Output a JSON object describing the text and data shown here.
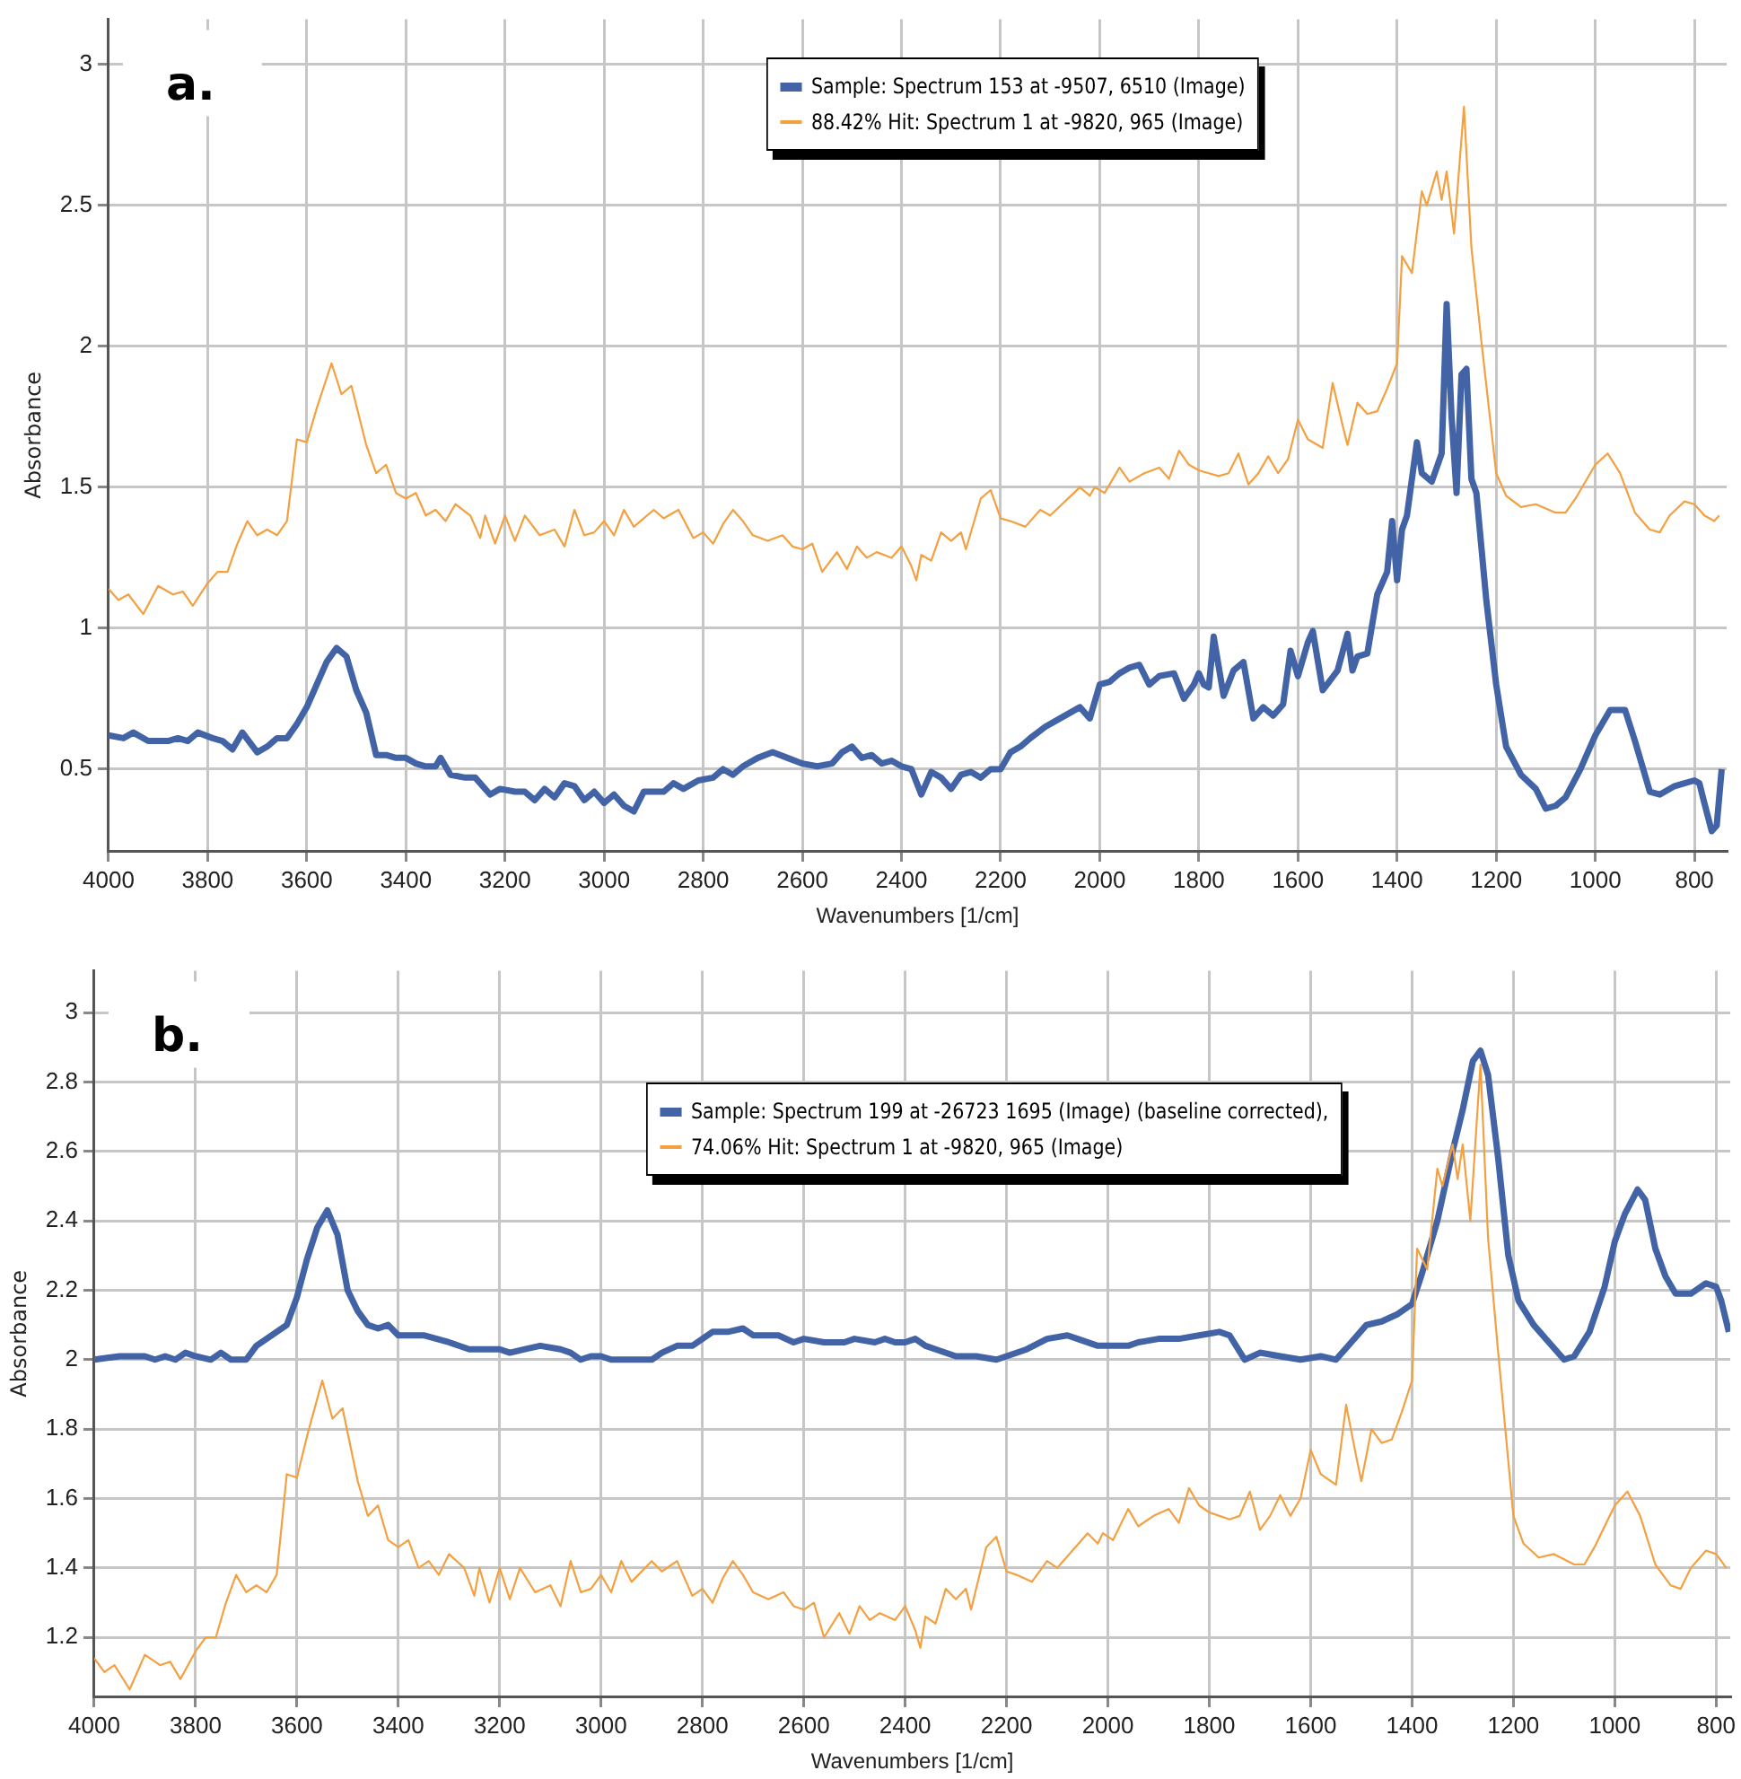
{
  "chart_data": [
    {
      "type": "line",
      "xlabel": "Wavenumbers [1/cm]",
      "ylabel": "Absorbance",
      "annotations": [
        "a."
      ],
      "xlim": [
        4000,
        735
      ],
      "ylim": [
        0.21,
        3.16
      ],
      "xticks": [
        4000,
        3800,
        3600,
        3400,
        3200,
        3000,
        2800,
        2600,
        2400,
        2200,
        2000,
        1800,
        1600,
        1400,
        1200,
        1000,
        800
      ],
      "yticks": [
        0.5,
        1,
        1.5,
        2,
        2.5,
        3
      ],
      "grid": true,
      "legend": "top",
      "marker": "none",
      "series": [
        {
          "name": "Sample: Spectrum 153 at -9507, 6510 (Image)",
          "color": "#4263a6",
          "x": [
            4000,
            3970,
            3950,
            3920,
            3880,
            3860,
            3840,
            3820,
            3790,
            3770,
            3750,
            3730,
            3700,
            3680,
            3660,
            3640,
            3620,
            3600,
            3580,
            3560,
            3540,
            3520,
            3500,
            3480,
            3460,
            3440,
            3420,
            3400,
            3380,
            3360,
            3340,
            3330,
            3310,
            3280,
            3260,
            3230,
            3210,
            3180,
            3160,
            3140,
            3120,
            3100,
            3080,
            3060,
            3040,
            3020,
            3000,
            2980,
            2960,
            2940,
            2920,
            2880,
            2860,
            2840,
            2810,
            2780,
            2760,
            2740,
            2720,
            2690,
            2660,
            2630,
            2600,
            2570,
            2540,
            2520,
            2500,
            2480,
            2460,
            2440,
            2420,
            2400,
            2380,
            2360,
            2340,
            2320,
            2300,
            2280,
            2260,
            2240,
            2220,
            2200,
            2180,
            2160,
            2140,
            2110,
            2080,
            2060,
            2040,
            2020,
            2000,
            1980,
            1960,
            1940,
            1920,
            1900,
            1880,
            1850,
            1830,
            1810,
            1800,
            1790,
            1780,
            1770,
            1750,
            1730,
            1710,
            1690,
            1670,
            1650,
            1630,
            1615,
            1600,
            1580,
            1570,
            1550,
            1520,
            1500,
            1490,
            1480,
            1460,
            1440,
            1420,
            1410,
            1400,
            1390,
            1380,
            1360,
            1350,
            1330,
            1310,
            1300,
            1290,
            1280,
            1270,
            1260,
            1250,
            1240,
            1220,
            1200,
            1180,
            1150,
            1120,
            1100,
            1080,
            1060,
            1030,
            1000,
            970,
            940,
            920,
            890,
            870,
            840,
            820,
            800,
            790,
            780,
            765,
            755,
            745
          ],
          "values": [
            0.62,
            0.61,
            0.63,
            0.6,
            0.6,
            0.61,
            0.6,
            0.63,
            0.61,
            0.6,
            0.57,
            0.63,
            0.56,
            0.58,
            0.61,
            0.61,
            0.66,
            0.72,
            0.8,
            0.88,
            0.93,
            0.9,
            0.78,
            0.7,
            0.55,
            0.55,
            0.54,
            0.54,
            0.52,
            0.51,
            0.51,
            0.54,
            0.48,
            0.47,
            0.47,
            0.41,
            0.43,
            0.42,
            0.42,
            0.39,
            0.43,
            0.4,
            0.45,
            0.44,
            0.39,
            0.42,
            0.38,
            0.41,
            0.37,
            0.35,
            0.42,
            0.42,
            0.45,
            0.43,
            0.46,
            0.47,
            0.5,
            0.48,
            0.51,
            0.54,
            0.56,
            0.54,
            0.52,
            0.51,
            0.52,
            0.56,
            0.58,
            0.54,
            0.55,
            0.52,
            0.53,
            0.51,
            0.5,
            0.41,
            0.49,
            0.47,
            0.43,
            0.48,
            0.49,
            0.47,
            0.5,
            0.5,
            0.56,
            0.58,
            0.61,
            0.65,
            0.68,
            0.7,
            0.72,
            0.68,
            0.8,
            0.81,
            0.84,
            0.86,
            0.87,
            0.8,
            0.83,
            0.84,
            0.75,
            0.8,
            0.84,
            0.8,
            0.79,
            0.97,
            0.76,
            0.85,
            0.88,
            0.68,
            0.72,
            0.69,
            0.73,
            0.92,
            0.83,
            0.95,
            0.99,
            0.78,
            0.85,
            0.98,
            0.85,
            0.9,
            0.91,
            1.12,
            1.2,
            1.38,
            1.17,
            1.35,
            1.4,
            1.66,
            1.55,
            1.52,
            1.62,
            2.15,
            1.75,
            1.48,
            1.9,
            1.92,
            1.53,
            1.48,
            1.1,
            0.8,
            0.58,
            0.48,
            0.43,
            0.36,
            0.37,
            0.4,
            0.5,
            0.62,
            0.71,
            0.71,
            0.6,
            0.42,
            0.41,
            0.44,
            0.45,
            0.46,
            0.45,
            0.38,
            0.28,
            0.3,
            0.5
          ]
        },
        {
          "name": "88.42% Hit: Spectrum 1 at -9820, 965 (Image)",
          "color": "#f4a040",
          "x": [
            4000,
            3980,
            3960,
            3930,
            3900,
            3870,
            3850,
            3830,
            3800,
            3780,
            3760,
            3740,
            3720,
            3700,
            3680,
            3660,
            3640,
            3620,
            3600,
            3580,
            3550,
            3530,
            3510,
            3480,
            3460,
            3440,
            3420,
            3400,
            3380,
            3360,
            3340,
            3320,
            3300,
            3270,
            3250,
            3240,
            3220,
            3200,
            3180,
            3160,
            3130,
            3100,
            3080,
            3060,
            3040,
            3020,
            3000,
            2980,
            2960,
            2940,
            2900,
            2880,
            2850,
            2820,
            2800,
            2780,
            2760,
            2740,
            2720,
            2700,
            2670,
            2640,
            2620,
            2600,
            2580,
            2560,
            2530,
            2510,
            2490,
            2470,
            2450,
            2420,
            2400,
            2380,
            2370,
            2360,
            2340,
            2320,
            2300,
            2280,
            2270,
            2240,
            2220,
            2200,
            2180,
            2150,
            2120,
            2100,
            2070,
            2040,
            2020,
            2010,
            1990,
            1960,
            1940,
            1910,
            1880,
            1860,
            1840,
            1820,
            1800,
            1780,
            1760,
            1740,
            1720,
            1700,
            1680,
            1660,
            1640,
            1620,
            1600,
            1580,
            1550,
            1530,
            1510,
            1500,
            1480,
            1460,
            1440,
            1420,
            1400,
            1390,
            1370,
            1350,
            1340,
            1320,
            1310,
            1300,
            1285,
            1265,
            1250,
            1230,
            1200,
            1180,
            1150,
            1120,
            1080,
            1060,
            1040,
            1000,
            975,
            950,
            920,
            890,
            870,
            850,
            820,
            800,
            780,
            760,
            750
          ],
          "values": [
            1.14,
            1.1,
            1.12,
            1.05,
            1.15,
            1.12,
            1.13,
            1.08,
            1.16,
            1.2,
            1.2,
            1.3,
            1.38,
            1.33,
            1.35,
            1.33,
            1.38,
            1.67,
            1.66,
            1.78,
            1.94,
            1.83,
            1.86,
            1.65,
            1.55,
            1.58,
            1.48,
            1.46,
            1.48,
            1.4,
            1.42,
            1.38,
            1.44,
            1.4,
            1.32,
            1.4,
            1.3,
            1.4,
            1.31,
            1.4,
            1.33,
            1.35,
            1.29,
            1.42,
            1.33,
            1.34,
            1.38,
            1.33,
            1.42,
            1.36,
            1.42,
            1.39,
            1.42,
            1.32,
            1.34,
            1.3,
            1.37,
            1.42,
            1.38,
            1.33,
            1.31,
            1.33,
            1.29,
            1.28,
            1.3,
            1.2,
            1.27,
            1.21,
            1.29,
            1.25,
            1.27,
            1.25,
            1.29,
            1.22,
            1.17,
            1.26,
            1.24,
            1.34,
            1.31,
            1.34,
            1.28,
            1.46,
            1.49,
            1.39,
            1.38,
            1.36,
            1.42,
            1.4,
            1.45,
            1.5,
            1.47,
            1.5,
            1.48,
            1.57,
            1.52,
            1.55,
            1.57,
            1.53,
            1.63,
            1.58,
            1.56,
            1.55,
            1.54,
            1.55,
            1.62,
            1.51,
            1.55,
            1.61,
            1.55,
            1.6,
            1.74,
            1.67,
            1.64,
            1.87,
            1.72,
            1.65,
            1.8,
            1.76,
            1.77,
            1.85,
            1.94,
            2.32,
            2.26,
            2.55,
            2.5,
            2.62,
            2.52,
            2.62,
            2.4,
            2.85,
            2.35,
            2.02,
            1.55,
            1.47,
            1.43,
            1.44,
            1.41,
            1.41,
            1.46,
            1.58,
            1.62,
            1.55,
            1.41,
            1.35,
            1.34,
            1.4,
            1.45,
            1.44,
            1.4,
            1.38,
            1.4
          ]
        }
      ]
    },
    {
      "type": "line",
      "xlabel": "Wavenumbers [1/cm]",
      "ylabel": "Absorbance",
      "annotations": [
        "b."
      ],
      "xlim": [
        4000,
        772
      ],
      "ylim": [
        1.03,
        3.12
      ],
      "xticks": [
        4000,
        3800,
        3600,
        3400,
        3200,
        3000,
        2800,
        2600,
        2400,
        2200,
        2000,
        1800,
        1600,
        1400,
        1200,
        1000,
        800
      ],
      "yticks": [
        1.2,
        1.4,
        1.6,
        1.8,
        2,
        2.2,
        2.4,
        2.6,
        2.8,
        3
      ],
      "grid": true,
      "legend": "top",
      "marker": "none",
      "series": [
        {
          "name": "Sample: Spectrum 199 at -26723  1695 (Image) (baseline corrected),",
          "color": "#4263a6",
          "x": [
            4000,
            3950,
            3900,
            3880,
            3860,
            3840,
            3820,
            3800,
            3770,
            3750,
            3730,
            3700,
            3680,
            3660,
            3640,
            3620,
            3600,
            3580,
            3560,
            3540,
            3520,
            3500,
            3480,
            3460,
            3440,
            3420,
            3400,
            3350,
            3300,
            3260,
            3200,
            3180,
            3150,
            3120,
            3080,
            3060,
            3040,
            3020,
            3000,
            2980,
            2900,
            2880,
            2850,
            2820,
            2800,
            2780,
            2750,
            2720,
            2700,
            2650,
            2620,
            2600,
            2560,
            2520,
            2500,
            2460,
            2440,
            2420,
            2400,
            2380,
            2360,
            2340,
            2300,
            2260,
            2220,
            2200,
            2160,
            2120,
            2080,
            2060,
            2020,
            1980,
            1960,
            1940,
            1900,
            1860,
            1820,
            1780,
            1760,
            1730,
            1700,
            1660,
            1620,
            1580,
            1550,
            1520,
            1490,
            1460,
            1430,
            1400,
            1380,
            1350,
            1320,
            1300,
            1280,
            1265,
            1250,
            1230,
            1210,
            1190,
            1160,
            1130,
            1100,
            1080,
            1050,
            1020,
            1000,
            980,
            955,
            940,
            920,
            900,
            880,
            850,
            820,
            800,
            790,
            775
          ],
          "values": [
            2.0,
            2.01,
            2.01,
            2.0,
            2.01,
            2.0,
            2.02,
            2.01,
            2.0,
            2.02,
            2.0,
            2.0,
            2.04,
            2.06,
            2.08,
            2.1,
            2.18,
            2.29,
            2.38,
            2.43,
            2.36,
            2.2,
            2.14,
            2.1,
            2.09,
            2.1,
            2.07,
            2.07,
            2.05,
            2.03,
            2.03,
            2.02,
            2.03,
            2.04,
            2.03,
            2.02,
            2.0,
            2.01,
            2.01,
            2.0,
            2.0,
            2.02,
            2.04,
            2.04,
            2.06,
            2.08,
            2.08,
            2.09,
            2.07,
            2.07,
            2.05,
            2.06,
            2.05,
            2.05,
            2.06,
            2.05,
            2.06,
            2.05,
            2.05,
            2.06,
            2.04,
            2.03,
            2.01,
            2.01,
            2.0,
            2.01,
            2.03,
            2.06,
            2.07,
            2.06,
            2.04,
            2.04,
            2.04,
            2.05,
            2.06,
            2.06,
            2.07,
            2.08,
            2.07,
            2.0,
            2.02,
            2.01,
            2.0,
            2.01,
            2.0,
            2.05,
            2.1,
            2.11,
            2.13,
            2.16,
            2.25,
            2.4,
            2.6,
            2.72,
            2.86,
            2.89,
            2.82,
            2.58,
            2.3,
            2.17,
            2.1,
            2.05,
            2.0,
            2.01,
            2.08,
            2.21,
            2.34,
            2.42,
            2.49,
            2.46,
            2.32,
            2.24,
            2.19,
            2.19,
            2.22,
            2.21,
            2.17,
            2.08
          ]
        },
        {
          "name": "74.06% Hit: Spectrum 1 at -9820, 965 (Image)",
          "color": "#f4a040",
          "x": [
            4000,
            3980,
            3960,
            3930,
            3900,
            3870,
            3850,
            3830,
            3800,
            3780,
            3760,
            3740,
            3720,
            3700,
            3680,
            3660,
            3640,
            3620,
            3600,
            3580,
            3550,
            3530,
            3510,
            3480,
            3460,
            3440,
            3420,
            3400,
            3380,
            3360,
            3340,
            3320,
            3300,
            3270,
            3250,
            3240,
            3220,
            3200,
            3180,
            3160,
            3130,
            3100,
            3080,
            3060,
            3040,
            3020,
            3000,
            2980,
            2960,
            2940,
            2900,
            2880,
            2850,
            2820,
            2800,
            2780,
            2760,
            2740,
            2720,
            2700,
            2670,
            2640,
            2620,
            2600,
            2580,
            2560,
            2530,
            2510,
            2490,
            2470,
            2450,
            2420,
            2400,
            2380,
            2370,
            2360,
            2340,
            2320,
            2300,
            2280,
            2270,
            2240,
            2220,
            2200,
            2180,
            2150,
            2120,
            2100,
            2070,
            2040,
            2020,
            2010,
            1990,
            1960,
            1940,
            1910,
            1880,
            1860,
            1840,
            1820,
            1800,
            1780,
            1760,
            1740,
            1720,
            1700,
            1680,
            1660,
            1640,
            1620,
            1600,
            1580,
            1550,
            1530,
            1510,
            1500,
            1480,
            1460,
            1440,
            1420,
            1400,
            1390,
            1370,
            1350,
            1340,
            1320,
            1310,
            1300,
            1285,
            1265,
            1250,
            1230,
            1200,
            1180,
            1150,
            1120,
            1080,
            1060,
            1040,
            1000,
            975,
            950,
            920,
            890,
            870,
            850,
            820,
            800,
            780
          ],
          "values": [
            1.14,
            1.1,
            1.12,
            1.05,
            1.15,
            1.12,
            1.13,
            1.08,
            1.16,
            1.2,
            1.2,
            1.3,
            1.38,
            1.33,
            1.35,
            1.33,
            1.38,
            1.67,
            1.66,
            1.78,
            1.94,
            1.83,
            1.86,
            1.65,
            1.55,
            1.58,
            1.48,
            1.46,
            1.48,
            1.4,
            1.42,
            1.38,
            1.44,
            1.4,
            1.32,
            1.4,
            1.3,
            1.4,
            1.31,
            1.4,
            1.33,
            1.35,
            1.29,
            1.42,
            1.33,
            1.34,
            1.38,
            1.33,
            1.42,
            1.36,
            1.42,
            1.39,
            1.42,
            1.32,
            1.34,
            1.3,
            1.37,
            1.42,
            1.38,
            1.33,
            1.31,
            1.33,
            1.29,
            1.28,
            1.3,
            1.2,
            1.27,
            1.21,
            1.29,
            1.25,
            1.27,
            1.25,
            1.29,
            1.22,
            1.17,
            1.26,
            1.24,
            1.34,
            1.31,
            1.34,
            1.28,
            1.46,
            1.49,
            1.39,
            1.38,
            1.36,
            1.42,
            1.4,
            1.45,
            1.5,
            1.47,
            1.5,
            1.48,
            1.57,
            1.52,
            1.55,
            1.57,
            1.53,
            1.63,
            1.58,
            1.56,
            1.55,
            1.54,
            1.55,
            1.62,
            1.51,
            1.55,
            1.61,
            1.55,
            1.6,
            1.74,
            1.67,
            1.64,
            1.87,
            1.72,
            1.65,
            1.8,
            1.76,
            1.77,
            1.85,
            1.94,
            2.32,
            2.26,
            2.55,
            2.5,
            2.62,
            2.52,
            2.62,
            2.4,
            2.85,
            2.35,
            2.02,
            1.55,
            1.47,
            1.43,
            1.44,
            1.41,
            1.41,
            1.46,
            1.58,
            1.62,
            1.55,
            1.41,
            1.35,
            1.34,
            1.4,
            1.45,
            1.44,
            1.4
          ]
        }
      ]
    }
  ]
}
